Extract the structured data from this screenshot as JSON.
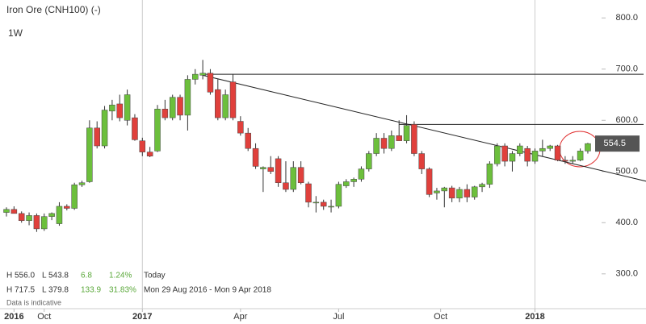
{
  "chart_data": {
    "type": "candlestick",
    "title": "Iron Ore (CNH100) (-)",
    "subtitle": "1W",
    "open": [
      420,
      426,
      418,
      404,
      414,
      388,
      412,
      398,
      432,
      428,
      474,
      480,
      585,
      550,
      618,
      632,
      600,
      605,
      560,
      538,
      540,
      622,
      605,
      645,
      610,
      680,
      688,
      692,
      660,
      605,
      675,
      598,
      575,
      545,
      505,
      508,
      525,
      478,
      465,
      508,
      476,
      440,
      440,
      432,
      432,
      472,
      480,
      485,
      505,
      535,
      565,
      545,
      570,
      560,
      592,
      535,
      505,
      458,
      462,
      468,
      448,
      465,
      450,
      470,
      475,
      515,
      550,
      520,
      535,
      545,
      520,
      540,
      545,
      550,
      522,
      520,
      522,
      540
    ],
    "high": [
      430,
      432,
      422,
      420,
      418,
      418,
      420,
      440,
      436,
      478,
      482,
      600,
      598,
      628,
      640,
      650,
      660,
      612,
      566,
      548,
      630,
      640,
      650,
      650,
      688,
      700,
      718,
      700,
      680,
      660,
      690,
      608,
      585,
      555,
      510,
      530,
      530,
      520,
      520,
      520,
      480,
      452,
      445,
      445,
      480,
      485,
      488,
      510,
      540,
      575,
      575,
      580,
      600,
      610,
      598,
      540,
      508,
      468,
      470,
      472,
      470,
      475,
      472,
      478,
      520,
      555,
      555,
      540,
      555,
      550,
      545,
      562,
      552,
      552,
      530,
      530,
      545,
      556
    ],
    "low": [
      412,
      418,
      400,
      395,
      382,
      384,
      405,
      394,
      424,
      425,
      470,
      478,
      545,
      545,
      600,
      598,
      590,
      560,
      530,
      528,
      538,
      600,
      600,
      600,
      580,
      670,
      680,
      650,
      600,
      600,
      600,
      570,
      540,
      505,
      460,
      495,
      470,
      460,
      460,
      475,
      430,
      420,
      425,
      420,
      428,
      468,
      470,
      480,
      500,
      530,
      535,
      540,
      560,
      555,
      530,
      495,
      450,
      445,
      430,
      440,
      440,
      440,
      445,
      460,
      468,
      510,
      510,
      500,
      530,
      510,
      515,
      530,
      540,
      520,
      515,
      515,
      520,
      535
    ],
    "close": [
      426,
      418,
      404,
      414,
      388,
      412,
      418,
      432,
      428,
      474,
      478,
      585,
      550,
      620,
      630,
      605,
      650,
      562,
      538,
      530,
      622,
      605,
      645,
      610,
      680,
      690,
      692,
      655,
      605,
      650,
      605,
      575,
      545,
      510,
      508,
      500,
      478,
      465,
      508,
      478,
      440,
      440,
      432,
      432,
      475,
      480,
      485,
      505,
      535,
      565,
      545,
      570,
      560,
      590,
      535,
      505,
      455,
      462,
      468,
      448,
      465,
      450,
      470,
      475,
      515,
      550,
      520,
      535,
      550,
      520,
      540,
      545,
      550,
      522,
      520,
      522,
      540,
      554.5
    ],
    "up_color": "#6cbf3c",
    "down_color": "#e0403c",
    "ylim": [
      232,
      835
    ],
    "yticks": [
      {
        "value": 300,
        "label": "300.0"
      },
      {
        "value": 400,
        "label": "400.0"
      },
      {
        "value": 500,
        "label": "500.0"
      },
      {
        "value": 600,
        "label": "600.0"
      },
      {
        "value": 700,
        "label": "700.0"
      },
      {
        "value": 800,
        "label": "800.0"
      }
    ],
    "xticks": [
      {
        "value": 1,
        "label": "2016"
      },
      {
        "value": 5,
        "label": "Oct"
      },
      {
        "value": 18,
        "label": "2017"
      },
      {
        "value": 31,
        "label": "Apr"
      },
      {
        "value": 44,
        "label": "Jul"
      },
      {
        "value": 57.5,
        "label": "Oct"
      },
      {
        "value": 70,
        "label": "2018"
      }
    ],
    "year_lines": [
      18,
      70
    ],
    "hlines": [
      {
        "value": 690,
        "from": 26
      },
      {
        "value": 592,
        "from": 52
      }
    ],
    "trendline": {
      "start": [
        26,
        688
      ],
      "end": [
        85,
        480
      ]
    },
    "info": [
      [
        "H 556.0",
        "L 543.8",
        "6.8",
        "1.24%",
        "Today"
      ],
      [
        "H 717.5",
        "L 379.8",
        "133.9",
        "31.83%",
        "Mon 29 Aug 2016 - Mon 9 Apr 2018"
      ]
    ],
    "note": "Data is indicative"
  }
}
